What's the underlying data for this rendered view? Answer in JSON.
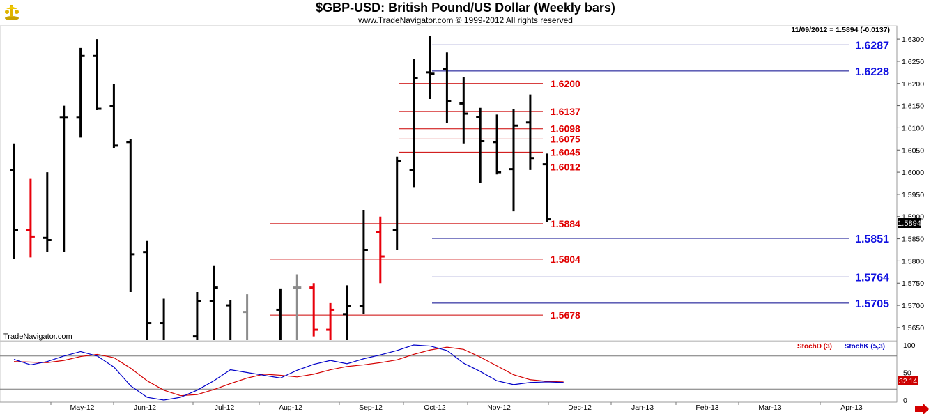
{
  "header": {
    "title": "$GBP-USD:  British Pound/US Dollar  (Weekly bars)",
    "subtitle": "www.TradeNavigator.com © 1999-2012 All rights reserved",
    "quote": "11/09/2012 = 1.5894 (-0.0137)",
    "watermark": "TradeNavigator.com"
  },
  "colors": {
    "up_bar": "#000000",
    "flagged_bar": "#e8000b",
    "muted_bar": "#8c8c8c",
    "resistance_line": "#cc0000",
    "projection_line": "#00008b",
    "stoch_d": "#d40000",
    "stoch_k": "#0000c8"
  },
  "chart_data": [
    {
      "type": "ohlc",
      "title": "$GBP-USD:  British Pound/US Dollar  (Weekly bars)",
      "ylim": [
        1.562,
        1.633
      ],
      "y_ticks": [
        "1.6300",
        "1.6250",
        "1.6200",
        "1.6150",
        "1.6100",
        "1.6050",
        "1.6000",
        "1.5950",
        "1.5900",
        "1.5850",
        "1.5800",
        "1.5750",
        "1.5700",
        "1.5650"
      ],
      "x_tick_labels": [
        "May-12",
        "Jun-12",
        "Jul-12",
        "Aug-12",
        "Sep-12",
        "Oct-12",
        "Nov-12",
        "Dec-12",
        "Jan-13",
        "Feb-13",
        "Mar-13",
        "Apr-13"
      ],
      "last_price": "1.5894",
      "bars": [
        {
          "week": "2012-03-30",
          "open": 1.6005,
          "high": 1.6065,
          "low": 1.5805,
          "close": 1.587,
          "color": "black"
        },
        {
          "week": "2012-04-06",
          "open": 1.587,
          "high": 1.5985,
          "low": 1.5808,
          "close": 1.5855,
          "color": "red"
        },
        {
          "week": "2012-04-13",
          "open": 1.5852,
          "high": 1.6,
          "low": 1.582,
          "close": 1.5847,
          "color": "black"
        },
        {
          "week": "2012-04-20",
          "open": 1.6123,
          "high": 1.615,
          "low": 1.582,
          "close": 1.6123,
          "color": "black"
        },
        {
          "week": "2012-04-27",
          "open": 1.6123,
          "high": 1.628,
          "low": 1.6078,
          "close": 1.6262,
          "color": "black"
        },
        {
          "week": "2012-05-04",
          "open": 1.6262,
          "high": 1.63,
          "low": 1.614,
          "close": 1.6143,
          "color": "black"
        },
        {
          "week": "2012-05-11",
          "open": 1.615,
          "high": 1.6198,
          "low": 1.6055,
          "close": 1.606,
          "color": "black"
        },
        {
          "week": "2012-05-18",
          "open": 1.6068,
          "high": 1.6075,
          "low": 1.573,
          "close": 1.5815,
          "color": "black"
        },
        {
          "week": "2012-05-25",
          "open": 1.582,
          "high": 1.5845,
          "low": 1.559,
          "close": 1.566,
          "color": "black"
        },
        {
          "week": "2012-06-01",
          "open": 1.566,
          "high": 1.5715,
          "low": 1.55,
          "close": 1.552,
          "color": "black"
        },
        {
          "week": "2012-06-08",
          "open": 1.553,
          "high": 1.556,
          "low": 1.542,
          "close": 1.553,
          "color": "black"
        },
        {
          "week": "2012-06-15",
          "open": 1.563,
          "high": 1.573,
          "low": 1.55,
          "close": 1.571,
          "color": "black"
        },
        {
          "week": "2012-06-22",
          "open": 1.571,
          "high": 1.579,
          "low": 1.551,
          "close": 1.574,
          "color": "black"
        },
        {
          "week": "2012-06-29",
          "open": 1.57,
          "high": 1.5712,
          "low": 1.549,
          "close": 1.554,
          "color": "black"
        },
        {
          "week": "2012-07-06",
          "open": 1.5685,
          "high": 1.5725,
          "low": 1.548,
          "close": 1.55,
          "color": "gray"
        },
        {
          "week": "2012-07-13",
          "open": 1.55,
          "high": 1.56,
          "low": 1.542,
          "close": 1.556,
          "color": "black"
        },
        {
          "week": "2012-07-20",
          "open": 1.569,
          "high": 1.5738,
          "low": 1.545,
          "close": 1.552,
          "color": "black"
        },
        {
          "week": "2012-07-27",
          "open": 1.574,
          "high": 1.577,
          "low": 1.548,
          "close": 1.574,
          "color": "gray"
        },
        {
          "week": "2012-08-03",
          "open": 1.574,
          "high": 1.575,
          "low": 1.563,
          "close": 1.5645,
          "color": "red"
        },
        {
          "week": "2012-08-10",
          "open": 1.5645,
          "high": 1.5705,
          "low": 1.56,
          "close": 1.569,
          "color": "red"
        },
        {
          "week": "2012-08-17",
          "open": 1.568,
          "high": 1.5745,
          "low": 1.56,
          "close": 1.5698,
          "color": "black"
        },
        {
          "week": "2012-08-24",
          "open": 1.5698,
          "high": 1.5915,
          "low": 1.568,
          "close": 1.5825,
          "color": "black"
        },
        {
          "week": "2012-08-31",
          "open": 1.5865,
          "high": 1.59,
          "low": 1.575,
          "close": 1.581,
          "color": "red"
        },
        {
          "week": "2012-09-07",
          "open": 1.587,
          "high": 1.6035,
          "low": 1.5825,
          "close": 1.6025,
          "color": "black"
        },
        {
          "week": "2012-09-14",
          "open": 1.6005,
          "high": 1.6255,
          "low": 1.5965,
          "close": 1.6212,
          "color": "black"
        },
        {
          "week": "2012-09-21",
          "open": 1.6225,
          "high": 1.6308,
          "low": 1.6165,
          "close": 1.6222,
          "color": "black"
        },
        {
          "week": "2012-09-28",
          "open": 1.6233,
          "high": 1.627,
          "low": 1.611,
          "close": 1.616,
          "color": "black"
        },
        {
          "week": "2012-10-05",
          "open": 1.6155,
          "high": 1.6215,
          "low": 1.6065,
          "close": 1.6132,
          "color": "black"
        },
        {
          "week": "2012-10-12",
          "open": 1.6125,
          "high": 1.6145,
          "low": 1.5975,
          "close": 1.607,
          "color": "black"
        },
        {
          "week": "2012-10-19",
          "open": 1.6068,
          "high": 1.613,
          "low": 1.5995,
          "close": 1.6,
          "color": "black"
        },
        {
          "week": "2012-10-26",
          "open": 1.6007,
          "high": 1.6142,
          "low": 1.5912,
          "close": 1.6105,
          "color": "black"
        },
        {
          "week": "2012-11-02",
          "open": 1.6112,
          "high": 1.6175,
          "low": 1.6005,
          "close": 1.6032,
          "color": "black"
        },
        {
          "week": "2012-11-09",
          "open": 1.6018,
          "high": 1.6042,
          "low": 1.5888,
          "close": 1.5894,
          "color": "black"
        }
      ],
      "red_levels": [
        {
          "label": "1.6200",
          "value": 1.62
        },
        {
          "label": "1.6137",
          "value": 1.6137
        },
        {
          "label": "1.6098",
          "value": 1.6098
        },
        {
          "label": "1.6075",
          "value": 1.6075
        },
        {
          "label": "1.6045",
          "value": 1.6045
        },
        {
          "label": "1.6012",
          "value": 1.6012
        },
        {
          "label": "1.5884",
          "value": 1.5884
        },
        {
          "label": "1.5804",
          "value": 1.5804
        },
        {
          "label": "1.5678",
          "value": 1.5678
        }
      ],
      "blue_levels": [
        {
          "label": "1.6287",
          "value": 1.6287
        },
        {
          "label": "1.6228",
          "value": 1.6228
        },
        {
          "label": "1.5851",
          "value": 1.5851
        },
        {
          "label": "1.5764",
          "value": 1.5764
        },
        {
          "label": "1.5705",
          "value": 1.5705
        }
      ]
    },
    {
      "type": "line",
      "ylim": [
        0,
        100
      ],
      "y_ticks": [
        "100",
        "50",
        "0"
      ],
      "reference_lines": [
        80,
        20
      ],
      "last_value": "32.14",
      "legend": [
        "StochD (3)",
        "StochK (5,3)"
      ],
      "series": [
        {
          "name": "StochD (3)",
          "values": [
            70,
            69,
            68,
            72,
            79,
            83,
            77,
            58,
            35,
            18,
            8,
            10,
            19,
            30,
            40,
            47,
            45,
            42,
            47,
            55,
            61,
            64,
            68,
            73,
            83,
            91,
            96,
            92,
            78,
            62,
            46,
            37,
            34,
            33
          ]
        },
        {
          "name": "StochK (5,3)",
          "values": [
            74,
            64,
            70,
            80,
            88,
            80,
            60,
            26,
            5,
            0,
            5,
            18,
            35,
            55,
            50,
            45,
            40,
            54,
            65,
            72,
            66,
            75,
            82,
            90,
            100,
            98,
            90,
            67,
            52,
            35,
            28,
            32,
            33,
            32
          ]
        }
      ]
    }
  ]
}
